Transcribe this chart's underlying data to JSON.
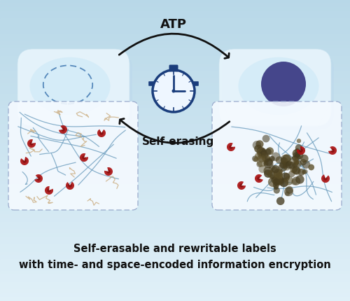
{
  "bg_color": "#daeef5",
  "title_line1": "Self-erasable and rewritable labels",
  "title_line2": "with time- and space-encoded information encryption",
  "atp_label": "ATP",
  "self_erasing_label": "Self-erasing",
  "arrow_color": "#111111",
  "stopwatch_color": "#1a3d7c",
  "card_face_color": "#e8f5fc",
  "card_edge_color": "#cce4f0",
  "card_shadow_color": "#bcd8ec",
  "left_blob_color": "#d0eaf8",
  "right_blob_color": "#d0eaf8",
  "purple_circle": "#3d3d85",
  "dashed_ellipse_color": "#5588bb",
  "network_line_color": "#6699bb",
  "red_particle_color": "#aa1111",
  "tan_thread_color": "#c8a878",
  "dark_cluster_color": "#5a4d28",
  "zoom_box_bg": "#f5faff",
  "zoom_box_edge": "#99aacc",
  "connector_color": "#aabbcc"
}
